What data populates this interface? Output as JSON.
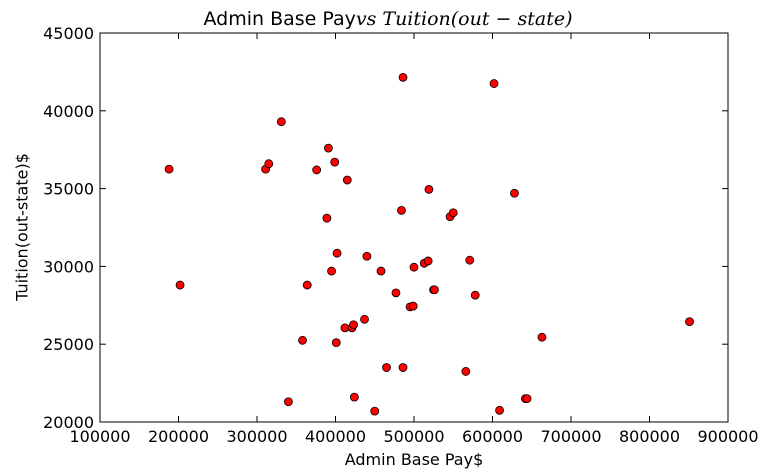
{
  "chart_data": {
    "type": "scatter",
    "title": {
      "plain": "Admin Base Pay",
      "math": "vs Tuition(out − state)"
    },
    "xlabel": "Admin Base Pay$",
    "ylabel": "Tuition(out-state)$",
    "xlim": [
      100000,
      900000
    ],
    "ylim": [
      20000,
      45000
    ],
    "xticks": [
      100000,
      200000,
      300000,
      400000,
      500000,
      600000,
      700000,
      800000,
      900000
    ],
    "xtick_labels": [
      "100000",
      "200000",
      "300000",
      "400000",
      "500000",
      "600000",
      "700000",
      "800000",
      "900000"
    ],
    "yticks": [
      20000,
      25000,
      30000,
      35000,
      40000,
      45000
    ],
    "ytick_labels": [
      "20000",
      "25000",
      "30000",
      "35000",
      "40000",
      "45000"
    ],
    "grid": false,
    "marker_color": "#ff0000",
    "marker_edge": "#000000",
    "points": [
      [
        188000,
        36250
      ],
      [
        202000,
        28800
      ],
      [
        311000,
        36250
      ],
      [
        315000,
        36600
      ],
      [
        331000,
        39300
      ],
      [
        340000,
        21300
      ],
      [
        358000,
        25250
      ],
      [
        364000,
        28800
      ],
      [
        376000,
        36200
      ],
      [
        389000,
        33100
      ],
      [
        391000,
        37600
      ],
      [
        395000,
        29700
      ],
      [
        399000,
        36700
      ],
      [
        401000,
        25100
      ],
      [
        402000,
        30850
      ],
      [
        412000,
        26050
      ],
      [
        415000,
        35550
      ],
      [
        421000,
        26050
      ],
      [
        423000,
        26250
      ],
      [
        424000,
        21600
      ],
      [
        437000,
        26600
      ],
      [
        440000,
        30650
      ],
      [
        450000,
        20700
      ],
      [
        458000,
        29700
      ],
      [
        465000,
        23500
      ],
      [
        477000,
        28300
      ],
      [
        484000,
        33600
      ],
      [
        486000,
        23500
      ],
      [
        486000,
        42150
      ],
      [
        495000,
        27400
      ],
      [
        499000,
        27450
      ],
      [
        500000,
        29950
      ],
      [
        513000,
        30200
      ],
      [
        518000,
        30350
      ],
      [
        519000,
        34950
      ],
      [
        525000,
        28500
      ],
      [
        526000,
        28500
      ],
      [
        546000,
        33200
      ],
      [
        550000,
        33450
      ],
      [
        566000,
        23250
      ],
      [
        571000,
        30400
      ],
      [
        578000,
        28150
      ],
      [
        602000,
        41750
      ],
      [
        609000,
        20750
      ],
      [
        628000,
        34700
      ],
      [
        642000,
        21500
      ],
      [
        644000,
        21500
      ],
      [
        663000,
        25450
      ],
      [
        851000,
        26450
      ]
    ]
  }
}
